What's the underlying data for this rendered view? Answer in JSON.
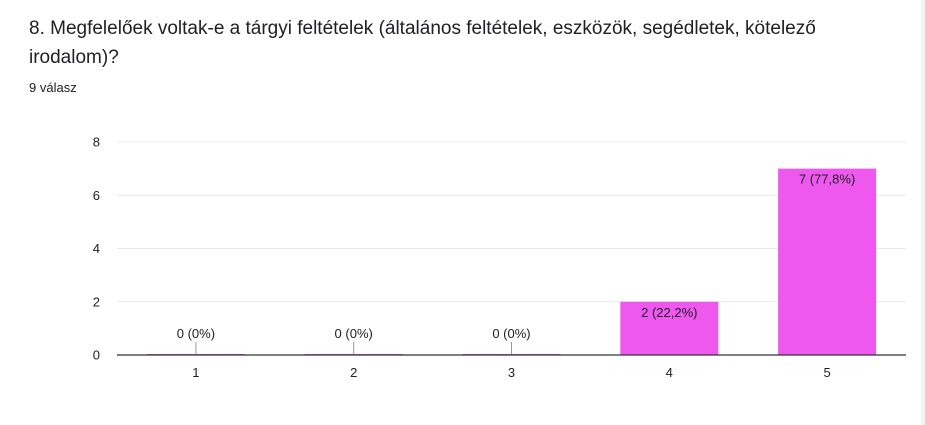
{
  "question": {
    "title": "8. Megfelelőek voltak-e a tárgyi feltételek (általános feltételek, eszközök, segédletek, kötelező irodalom)?",
    "responses": "9 válasz"
  },
  "colors": {
    "bar": "#ee58ee",
    "grid": "#e8e8e8",
    "axis": "#333333",
    "text": "#202124"
  },
  "chart_data": {
    "type": "bar",
    "categories": [
      "1",
      "2",
      "3",
      "4",
      "5"
    ],
    "values": [
      0,
      0,
      0,
      2,
      7
    ],
    "data_labels": [
      "0 (0%)",
      "0 (0%)",
      "0 (0%)",
      "2 (22,2%)",
      "7 (77,8%)"
    ],
    "ylim": [
      0,
      8
    ],
    "yticks": [
      0,
      2,
      4,
      6,
      8
    ],
    "grid": true,
    "legend": "none"
  }
}
